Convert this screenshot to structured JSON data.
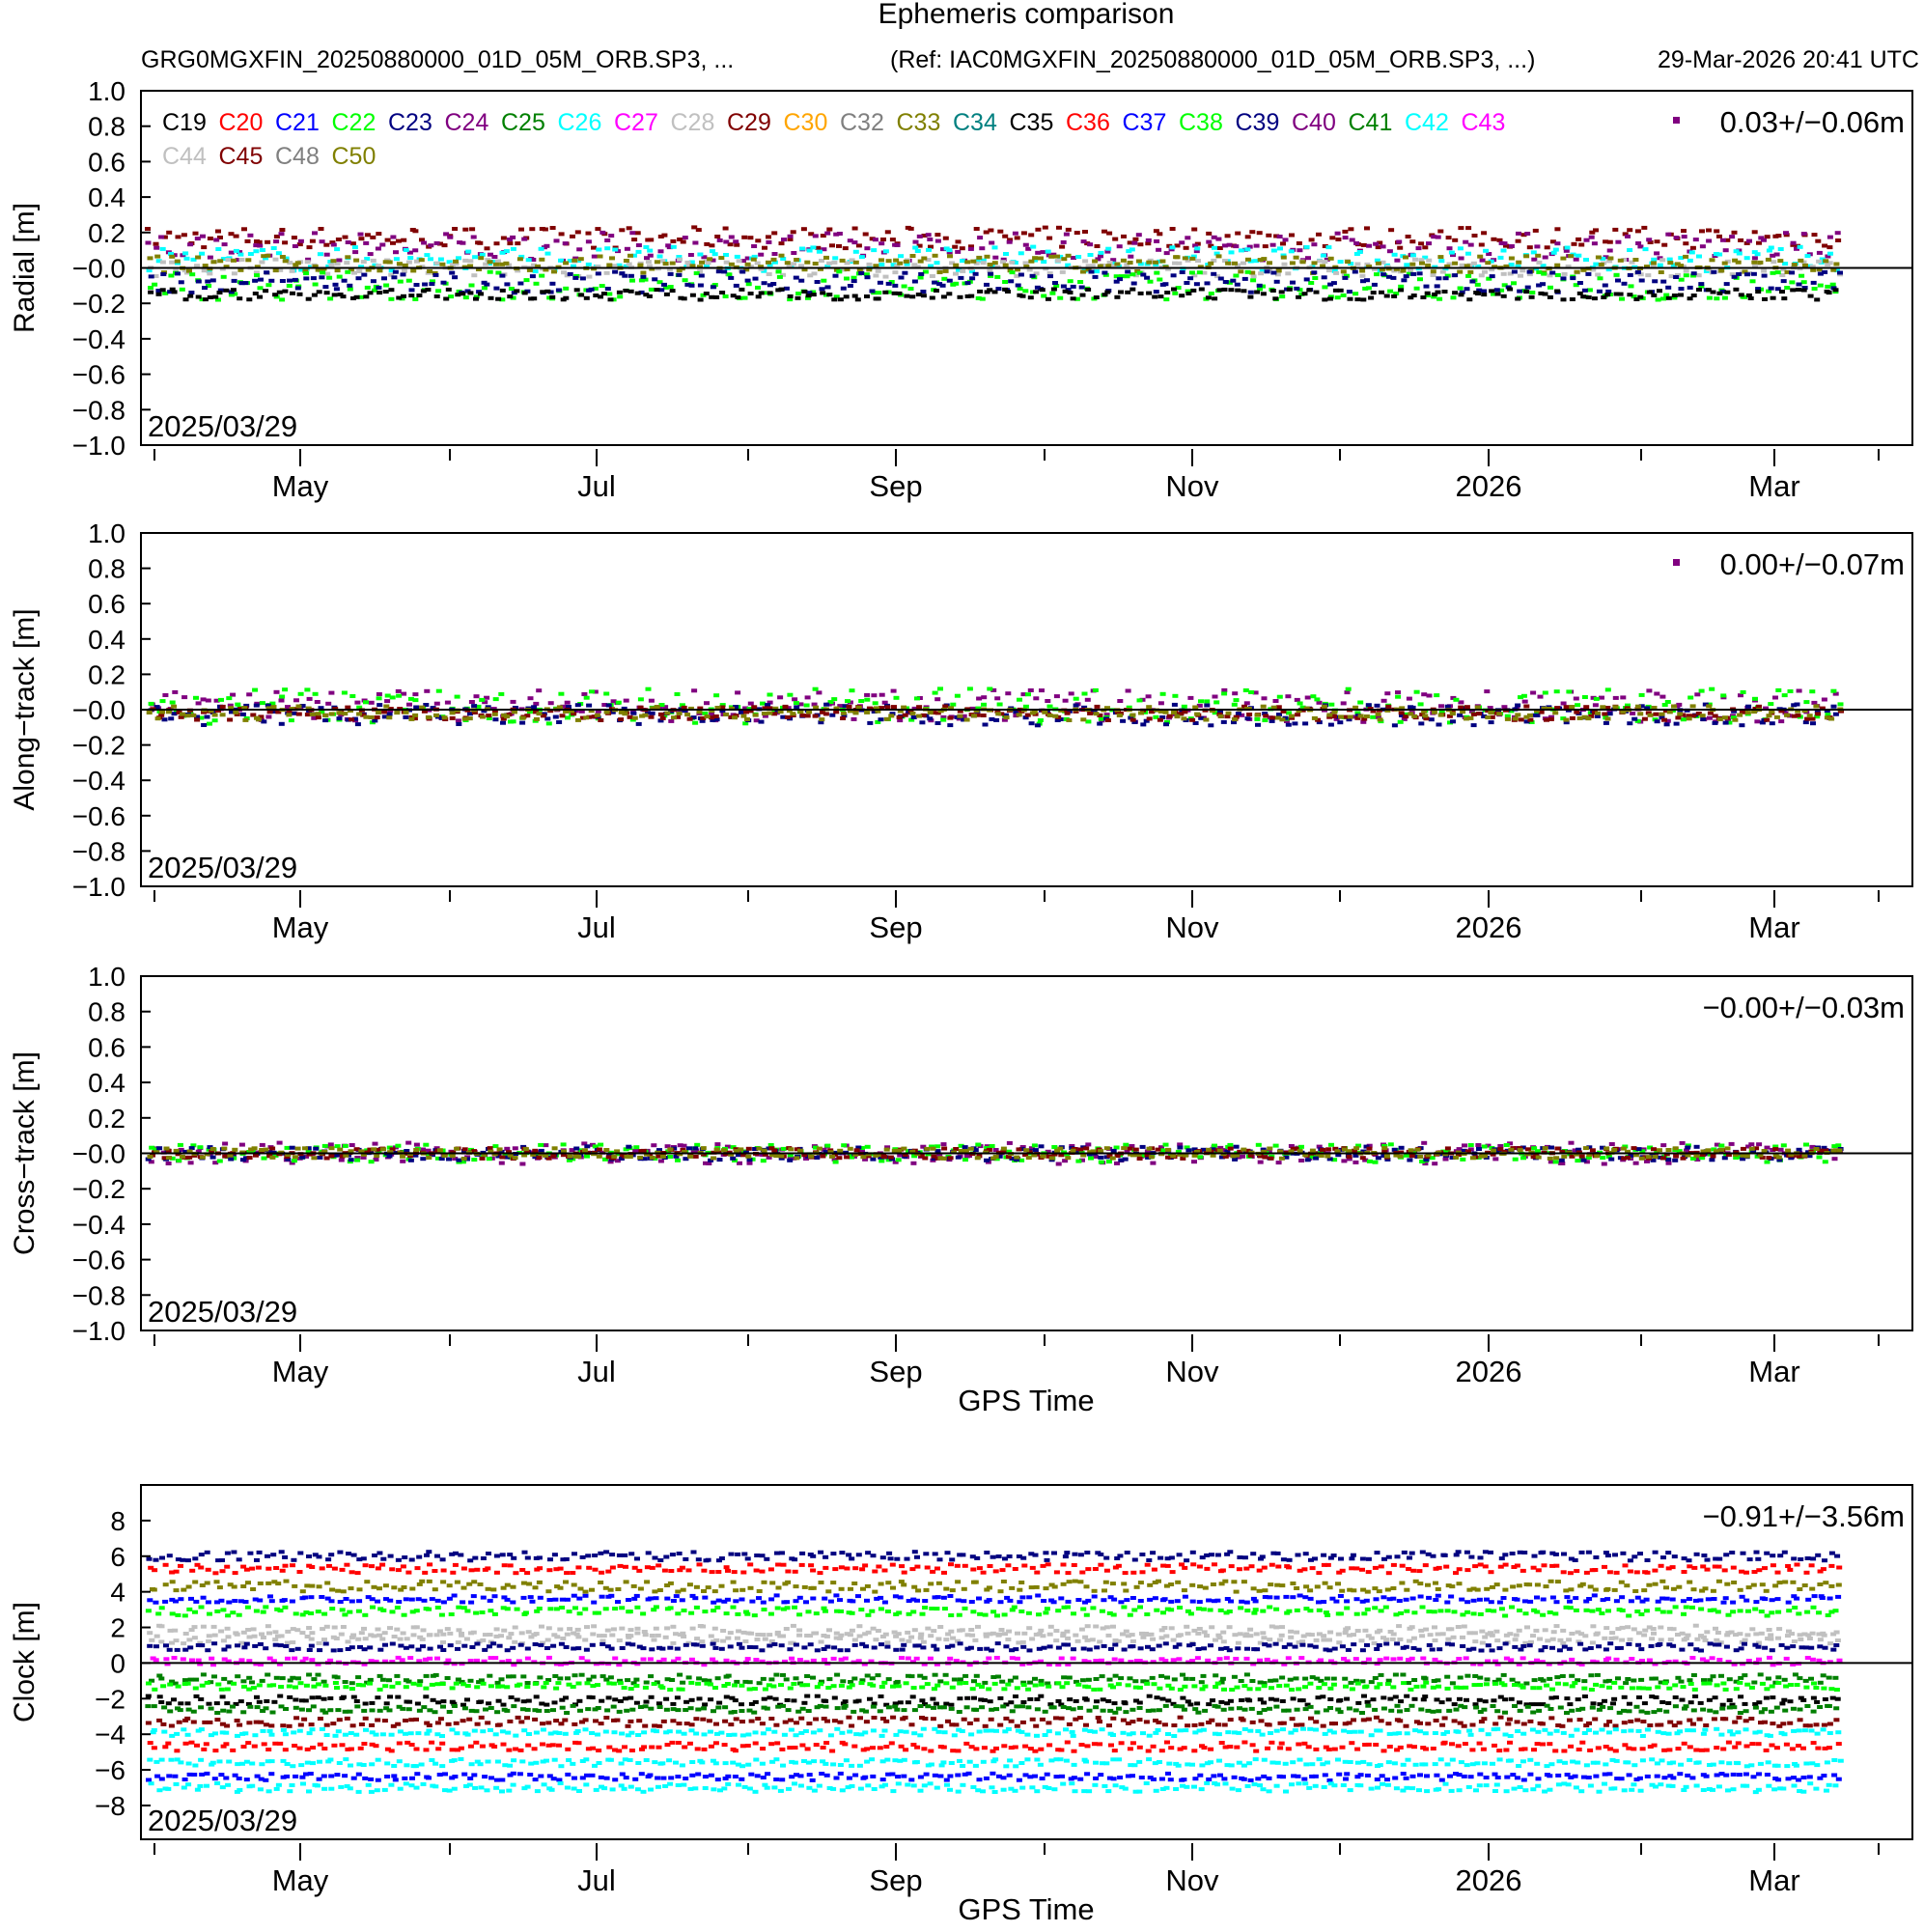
{
  "header": {
    "title": "Ephemeris comparison",
    "files": "GRG0MGXFIN_20250880000_01D_05M_ORB.SP3, ...",
    "reference": "(Ref: IAC0MGXFIN_20250880000_01D_05M_ORB.SP3, ...)",
    "generated": "29-Mar-2026 20:41 UTC"
  },
  "legend": [
    {
      "name": "C19",
      "color": "#000000"
    },
    {
      "name": "C20",
      "color": "#ff0000"
    },
    {
      "name": "C21",
      "color": "#0000ff"
    },
    {
      "name": "C22",
      "color": "#00ff00"
    },
    {
      "name": "C23",
      "color": "#000080"
    },
    {
      "name": "C24",
      "color": "#800080"
    },
    {
      "name": "C25",
      "color": "#008000"
    },
    {
      "name": "C26",
      "color": "#00ffff"
    },
    {
      "name": "C27",
      "color": "#ff00ff"
    },
    {
      "name": "C28",
      "color": "#c0c0c0"
    },
    {
      "name": "C29",
      "color": "#800000"
    },
    {
      "name": "C30",
      "color": "#ffa500"
    },
    {
      "name": "C32",
      "color": "#808080"
    },
    {
      "name": "C33",
      "color": "#808000"
    },
    {
      "name": "C34",
      "color": "#008080"
    },
    {
      "name": "C35",
      "color": "#000000"
    },
    {
      "name": "C36",
      "color": "#ff0000"
    },
    {
      "name": "C37",
      "color": "#0000ff"
    },
    {
      "name": "C38",
      "color": "#00ff00"
    },
    {
      "name": "C39",
      "color": "#000080"
    },
    {
      "name": "C40",
      "color": "#800080"
    },
    {
      "name": "C41",
      "color": "#008000"
    },
    {
      "name": "C42",
      "color": "#00ffff"
    },
    {
      "name": "C43",
      "color": "#ff00ff"
    },
    {
      "name": "C44",
      "color": "#c0c0c0"
    },
    {
      "name": "C45",
      "color": "#800000"
    },
    {
      "name": "C48",
      "color": "#808080"
    },
    {
      "name": "C50",
      "color": "#808000"
    }
  ],
  "chart_data": [
    {
      "type": "scatter",
      "ylabel": "Radial [m]",
      "xlabel": "",
      "ylim": [
        -1.0,
        1.0
      ],
      "yticks": [
        "1.0",
        "0.8",
        "0.6",
        "0.4",
        "0.2",
        "−0.0",
        "−0.2",
        "−0.4",
        "−0.6",
        "−0.8",
        "−1.0"
      ],
      "xticks": [
        "May",
        "Jul",
        "Sep",
        "Nov",
        "2026",
        "Mar"
      ],
      "date_label": "2025/03/29",
      "stat": "0.03+/−0.06m",
      "stat_marker_color": "#800080",
      "series_summary": [
        {
          "name": "C45",
          "offset": 0.17,
          "spread": 0.06
        },
        {
          "name": "C24",
          "offset": 0.12,
          "spread": 0.08
        },
        {
          "name": "C26",
          "offset": 0.05,
          "spread": 0.07
        },
        {
          "name": "C28",
          "offset": 0.0,
          "spread": 0.05
        },
        {
          "name": "C50",
          "offset": 0.02,
          "spread": 0.05
        },
        {
          "name": "C22",
          "offset": -0.1,
          "spread": 0.08
        },
        {
          "name": "C39",
          "offset": -0.08,
          "spread": 0.06
        },
        {
          "name": "C35",
          "offset": -0.15,
          "spread": 0.03
        }
      ]
    },
    {
      "type": "scatter",
      "ylabel": "Along−track [m]",
      "xlabel": "",
      "ylim": [
        -1.0,
        1.0
      ],
      "yticks": [
        "1.0",
        "0.8",
        "0.6",
        "0.4",
        "0.2",
        "−0.0",
        "−0.2",
        "−0.4",
        "−0.6",
        "−0.8",
        "−1.0"
      ],
      "xticks": [
        "May",
        "Jul",
        "Sep",
        "Nov",
        "2026",
        "Mar"
      ],
      "date_label": "2025/03/29",
      "stat": "0.00+/−0.07m",
      "stat_marker_color": "#800080",
      "series_summary": [
        {
          "name": "C24",
          "offset": 0.02,
          "spread": 0.09
        },
        {
          "name": "C22",
          "offset": 0.02,
          "spread": 0.1
        },
        {
          "name": "C39",
          "offset": -0.03,
          "spread": 0.06
        },
        {
          "name": "C45",
          "offset": -0.02,
          "spread": 0.04
        },
        {
          "name": "C50",
          "offset": -0.02,
          "spread": 0.04
        }
      ]
    },
    {
      "type": "scatter",
      "ylabel": "Cross−track [m]",
      "xlabel": "GPS Time",
      "ylim": [
        -1.0,
        1.0
      ],
      "yticks": [
        "1.0",
        "0.8",
        "0.6",
        "0.4",
        "0.2",
        "−0.0",
        "−0.2",
        "−0.4",
        "−0.6",
        "−0.8",
        "−1.0"
      ],
      "xticks": [
        "May",
        "Jul",
        "Sep",
        "Nov",
        "2026",
        "Mar"
      ],
      "date_label": "2025/03/29",
      "stat": "−0.00+/−0.03m",
      "stat_marker_color": "",
      "series_summary": [
        {
          "name": "C24",
          "offset": 0.0,
          "spread": 0.06
        },
        {
          "name": "C22",
          "offset": 0.0,
          "spread": 0.05
        },
        {
          "name": "C39",
          "offset": 0.0,
          "spread": 0.04
        },
        {
          "name": "C45",
          "offset": 0.0,
          "spread": 0.03
        },
        {
          "name": "C50",
          "offset": 0.0,
          "spread": 0.03
        }
      ]
    },
    {
      "type": "scatter",
      "ylabel": "Clock [m]",
      "xlabel": "GPS Time",
      "ylim": [
        -9.9,
        10.0
      ],
      "yticks": [
        "8",
        "6",
        "4",
        "2",
        "0",
        "−2",
        "−4",
        "−6",
        "−8"
      ],
      "ytick_values": [
        8,
        6,
        4,
        2,
        0,
        -2,
        -4,
        -6,
        -8
      ],
      "xticks": [
        "May",
        "Jul",
        "Sep",
        "Nov",
        "2026",
        "Mar"
      ],
      "date_label": "2025/03/29",
      "stat": "−0.91+/−3.56m",
      "stat_marker_color": "",
      "series_summary": [
        {
          "name": "C39",
          "offset": 6.0,
          "spread": 0.25
        },
        {
          "name": "C36",
          "offset": 5.3,
          "spread": 0.25
        },
        {
          "name": "C50",
          "offset": 4.3,
          "spread": 0.3
        },
        {
          "name": "C37",
          "offset": 3.6,
          "spread": 0.2
        },
        {
          "name": "C38",
          "offset": 2.9,
          "spread": 0.25
        },
        {
          "name": "C28",
          "offset": 1.8,
          "spread": 0.3
        },
        {
          "name": "C44",
          "offset": 1.4,
          "spread": 0.3
        },
        {
          "name": "C23",
          "offset": 0.9,
          "spread": 0.2
        },
        {
          "name": "C27",
          "offset": 0.1,
          "spread": 0.2
        },
        {
          "name": "C41",
          "offset": -0.9,
          "spread": 0.25
        },
        {
          "name": "C22",
          "offset": -1.3,
          "spread": 0.2
        },
        {
          "name": "C19",
          "offset": -2.1,
          "spread": 0.25
        },
        {
          "name": "C25",
          "offset": -2.6,
          "spread": 0.2
        },
        {
          "name": "C29",
          "offset": -3.3,
          "spread": 0.25
        },
        {
          "name": "C26",
          "offset": -3.9,
          "spread": 0.2
        },
        {
          "name": "C20",
          "offset": -4.7,
          "spread": 0.25
        },
        {
          "name": "C42",
          "offset": -5.6,
          "spread": 0.2
        },
        {
          "name": "C21",
          "offset": -6.4,
          "spread": 0.2
        },
        {
          "name": "C26",
          "offset": -7.0,
          "spread": 0.25
        }
      ]
    }
  ]
}
